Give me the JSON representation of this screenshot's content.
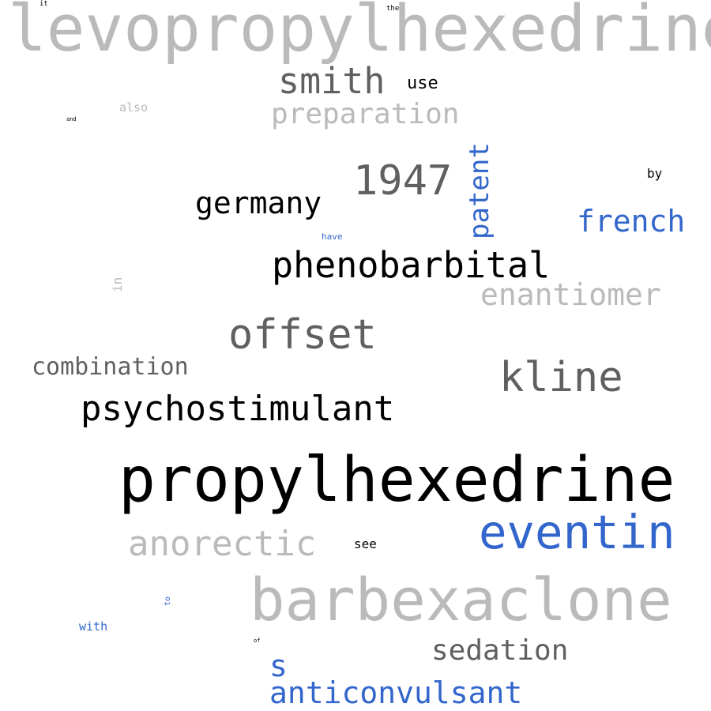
{
  "words": {
    "levopropylhexedrine": "levopropylhexedrine",
    "it": "it",
    "the": "the",
    "smith": "smith",
    "use": "use",
    "preparation": "preparation",
    "also": "also",
    "and": "and",
    "year_1947": "1947",
    "patent": "patent",
    "by": "by",
    "germany": "germany",
    "french": "french",
    "have": "have",
    "phenobarbital": "phenobarbital",
    "in": "in",
    "enantiomer": "enantiomer",
    "offset": "offset",
    "combination": "combination",
    "kline": "kline",
    "psychostimulant": "psychostimulant",
    "propylhexedrine": "propylhexedrine",
    "eventin": "eventin",
    "anorectic": "anorectic",
    "see": "see",
    "barbexaclone": "barbexaclone",
    "to": "to",
    "with": "with",
    "of": "of",
    "sedation": "sedation",
    "s": "s",
    "anticonvulsant": "anticonvulsant"
  },
  "colors": {
    "black": "#000000",
    "dark_gray": "#606060",
    "light_gray": "#bababa",
    "blue": "#3366cc"
  }
}
